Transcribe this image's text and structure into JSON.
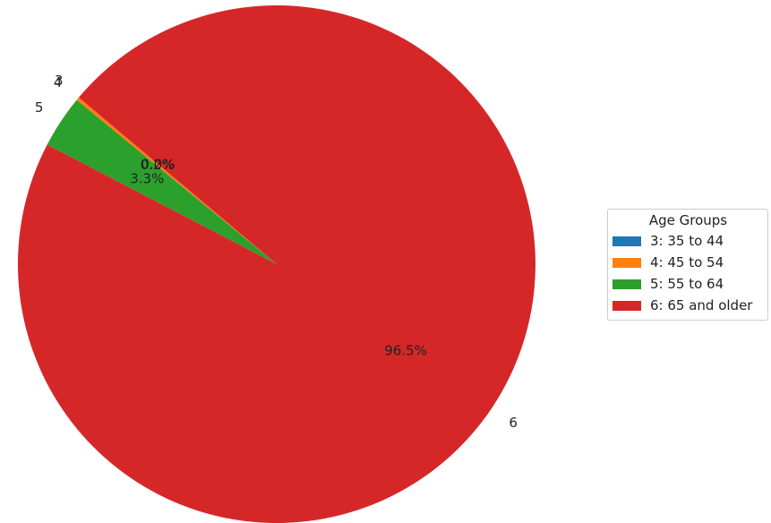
{
  "chart_data": {
    "type": "pie",
    "title": "",
    "categories": [
      "3",
      "4",
      "5",
      "6"
    ],
    "values": [
      0.0,
      0.2,
      3.3,
      96.5
    ],
    "percent_labels": [
      "0.0%",
      "0.2%",
      "3.3%",
      "96.5%"
    ],
    "colors": [
      "#1f77b4",
      "#ff7f0e",
      "#2ca02c",
      "#d62728"
    ],
    "start_angle_deg": 139.9,
    "legend": {
      "title": "Age Groups",
      "placement": "right",
      "entries": [
        "3: 35 to 44",
        "4: 45 to 54",
        "5: 55 to 64",
        "6: 65 and older"
      ]
    }
  }
}
